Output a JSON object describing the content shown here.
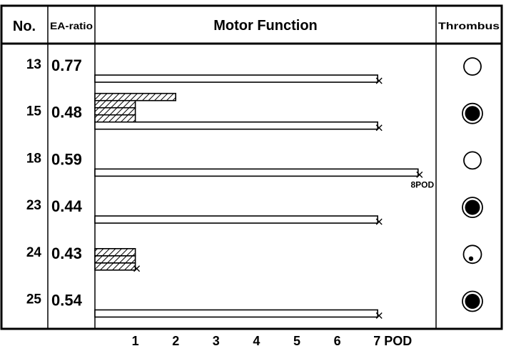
{
  "chart_data": {
    "type": "bar",
    "headers": {
      "no": "No.",
      "ea_ratio": "EA-ratio",
      "motor": "Motor Function",
      "thrombus": "Thrombus"
    },
    "x_ticks": [
      "1",
      "2",
      "3",
      "4",
      "5",
      "6",
      "7 POD"
    ],
    "xlim": [
      0,
      8
    ],
    "rows": [
      {
        "no": "13",
        "ea_ratio": "0.77",
        "plain_bars": [
          7
        ],
        "hatched_bars": [],
        "end_mark": 7,
        "end_label": "",
        "thrombus": "open"
      },
      {
        "no": "15",
        "ea_ratio": "0.48",
        "plain_bars": [
          7
        ],
        "hatched_bars": [
          1,
          1,
          1,
          2
        ],
        "end_mark": 7,
        "end_label": "",
        "thrombus": "filled"
      },
      {
        "no": "18",
        "ea_ratio": "0.59",
        "plain_bars": [
          8
        ],
        "hatched_bars": [],
        "end_mark": 8,
        "end_label": "8POD",
        "thrombus": "open"
      },
      {
        "no": "23",
        "ea_ratio": "0.44",
        "plain_bars": [
          7
        ],
        "hatched_bars": [],
        "end_mark": 7,
        "end_label": "",
        "thrombus": "filled"
      },
      {
        "no": "24",
        "ea_ratio": "0.43",
        "plain_bars": [],
        "hatched_bars": [
          1,
          1,
          1
        ],
        "end_mark": 1,
        "end_label": "",
        "thrombus": "small-dot"
      },
      {
        "no": "25",
        "ea_ratio": "0.54",
        "plain_bars": [
          7
        ],
        "hatched_bars": [],
        "end_mark": 7,
        "end_label": "",
        "thrombus": "filled"
      }
    ]
  }
}
